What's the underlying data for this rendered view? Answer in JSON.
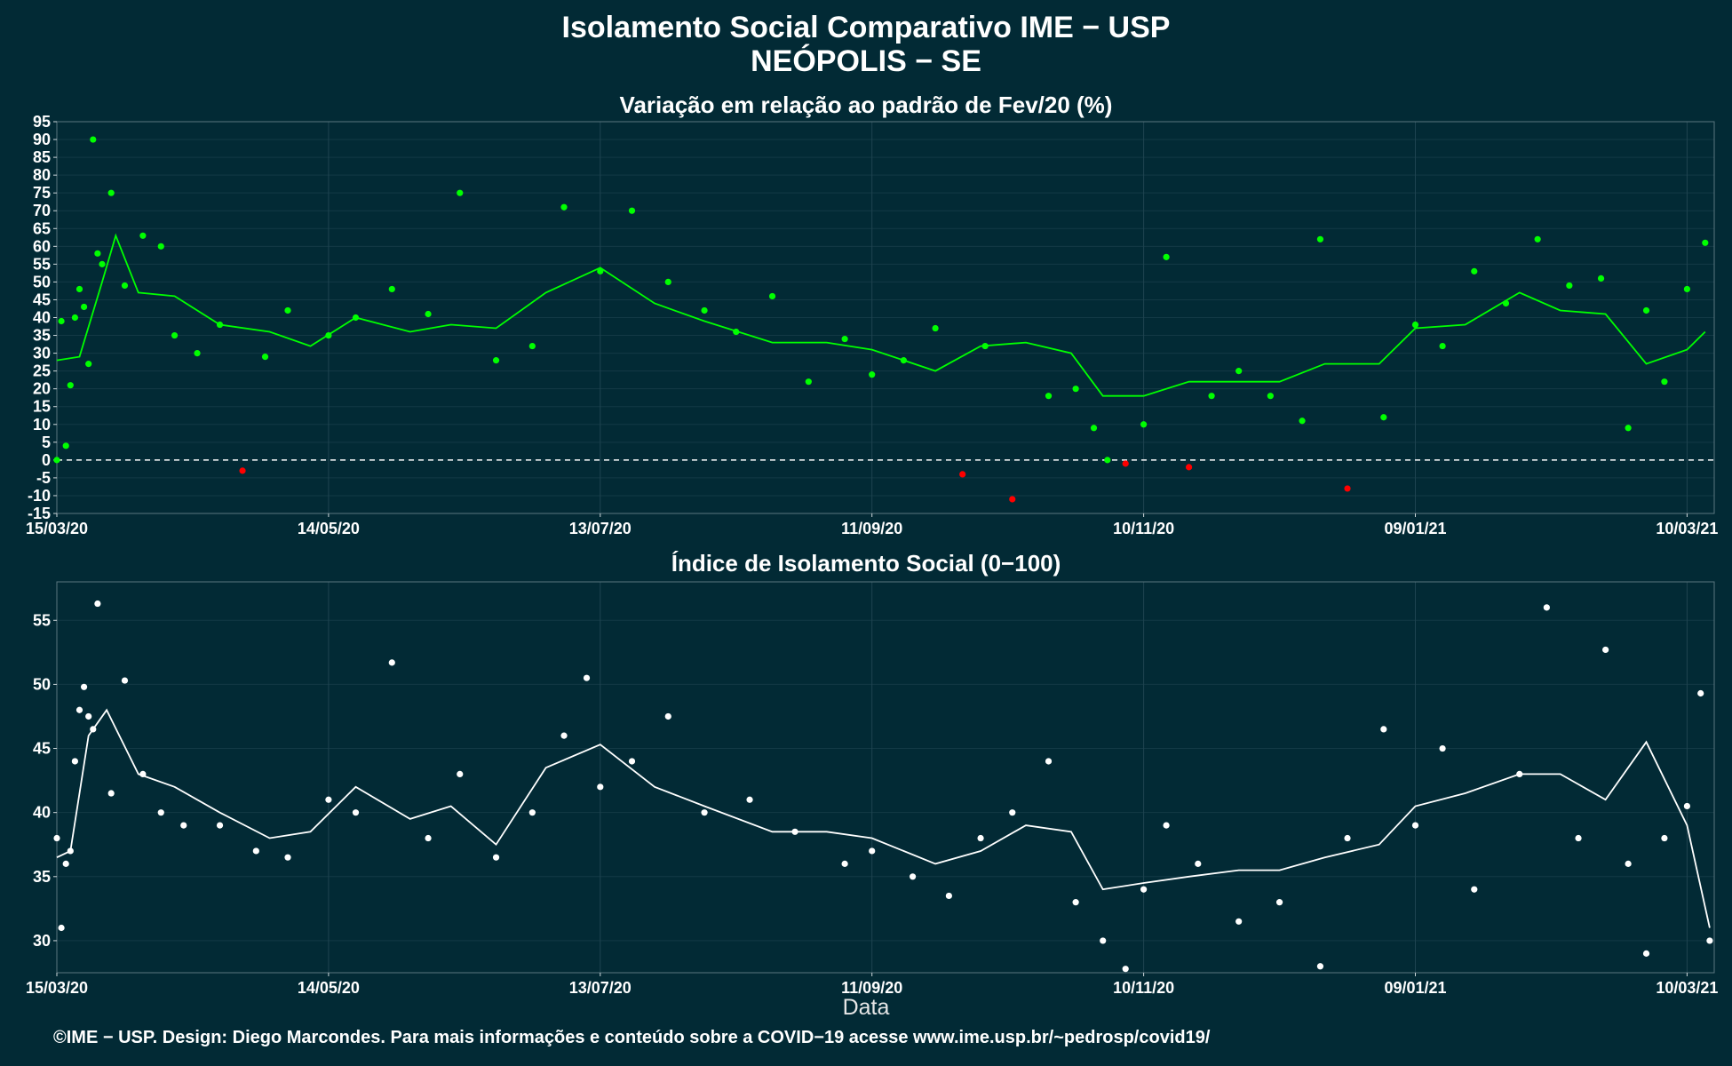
{
  "header": {
    "title": "Isolamento Social Comparativo IME − USP",
    "subtitle": "NEÓPOLIS − SE"
  },
  "footer": "©IME − USP. Design: Diego Marcondes. Para mais informações e conteúdo sobre a COVID−19 acesse www.ime.usp.br/~pedrosp/covid19/",
  "colors": {
    "background": "#022a35",
    "positive_points": "#00ff00",
    "negative_points": "#ff0000",
    "index_points": "#ffffff",
    "grid": "#1f4450"
  },
  "chart_data": [
    {
      "type": "scatter",
      "title": "Variação em relação ao padrão de Fev/20 (%)",
      "xlabel": "",
      "ylabel": "",
      "x_range": [
        "2020-03-15",
        "2021-03-16"
      ],
      "x_ticks": [
        "15/03/20",
        "14/05/20",
        "13/07/20",
        "11/09/20",
        "10/11/20",
        "09/01/21",
        "10/03/21"
      ],
      "ylim": [
        -15,
        95
      ],
      "y_ticks": [
        -15,
        -10,
        -5,
        0,
        5,
        10,
        15,
        20,
        25,
        30,
        35,
        40,
        45,
        50,
        55,
        60,
        65,
        70,
        75,
        80,
        85,
        90,
        95
      ],
      "grid": true,
      "reference_line": 0,
      "series": [
        {
          "style": "points (green if positive, red if negative)",
          "x": [
            "2020-03-15",
            "2020-03-16",
            "2020-03-17",
            "2020-03-18",
            "2020-03-19",
            "2020-03-20",
            "2020-03-21",
            "2020-03-22",
            "2020-03-23",
            "2020-03-24",
            "2020-03-25",
            "2020-03-27",
            "2020-03-30",
            "2020-04-03",
            "2020-04-07",
            "2020-04-10",
            "2020-04-15",
            "2020-04-20",
            "2020-04-25",
            "2020-04-30",
            "2020-05-05",
            "2020-05-14",
            "2020-05-20",
            "2020-05-28",
            "2020-06-05",
            "2020-06-12",
            "2020-06-20",
            "2020-06-28",
            "2020-07-05",
            "2020-07-13",
            "2020-07-20",
            "2020-07-28",
            "2020-08-05",
            "2020-08-12",
            "2020-08-20",
            "2020-08-28",
            "2020-09-05",
            "2020-09-11",
            "2020-09-18",
            "2020-09-25",
            "2020-10-01",
            "2020-10-06",
            "2020-10-12",
            "2020-10-20",
            "2020-10-26",
            "2020-10-30",
            "2020-11-02",
            "2020-11-06",
            "2020-11-10",
            "2020-11-15",
            "2020-11-20",
            "2020-11-25",
            "2020-12-01",
            "2020-12-08",
            "2020-12-15",
            "2020-12-19",
            "2020-12-25",
            "2021-01-02",
            "2021-01-09",
            "2021-01-15",
            "2021-01-22",
            "2021-01-29",
            "2021-02-05",
            "2021-02-12",
            "2021-02-19",
            "2021-02-25",
            "2021-03-01",
            "2021-03-05",
            "2021-03-10",
            "2021-03-14"
          ],
          "values": [
            0,
            39,
            4,
            21,
            40,
            48,
            43,
            27,
            90,
            58,
            55,
            75,
            49,
            63,
            60,
            35,
            30,
            38,
            -3,
            29,
            42,
            35,
            40,
            48,
            41,
            75,
            28,
            32,
            71,
            53,
            70,
            50,
            42,
            36,
            46,
            22,
            34,
            24,
            28,
            37,
            -4,
            32,
            -11,
            18,
            20,
            9,
            0,
            -1,
            10,
            57,
            -2,
            18,
            25,
            18,
            11,
            62,
            -8,
            12,
            38,
            32,
            53,
            44,
            62,
            49,
            51,
            9,
            42,
            22,
            48,
            61
          ]
        },
        {
          "style": "line (moving average)",
          "x": [
            "2020-03-15",
            "2020-03-20",
            "2020-03-25",
            "2020-03-28",
            "2020-04-02",
            "2020-04-10",
            "2020-04-20",
            "2020-05-01",
            "2020-05-10",
            "2020-05-20",
            "2020-06-01",
            "2020-06-10",
            "2020-06-20",
            "2020-07-01",
            "2020-07-13",
            "2020-07-25",
            "2020-08-05",
            "2020-08-20",
            "2020-09-01",
            "2020-09-11",
            "2020-09-25",
            "2020-10-05",
            "2020-10-15",
            "2020-10-25",
            "2020-11-01",
            "2020-11-10",
            "2020-11-20",
            "2020-12-01",
            "2020-12-10",
            "2020-12-20",
            "2021-01-01",
            "2021-01-09",
            "2021-01-20",
            "2021-02-01",
            "2021-02-10",
            "2021-02-20",
            "2021-03-01",
            "2021-03-10",
            "2021-03-14"
          ],
          "values": [
            28,
            29,
            50,
            63,
            47,
            46,
            38,
            36,
            32,
            40,
            36,
            38,
            37,
            47,
            54,
            44,
            39,
            33,
            33,
            31,
            25,
            32,
            33,
            30,
            18,
            18,
            22,
            22,
            22,
            27,
            27,
            37,
            38,
            47,
            42,
            41,
            27,
            31,
            36
          ]
        }
      ]
    },
    {
      "type": "scatter",
      "title": "Índice de Isolamento Social (0−100)",
      "xlabel": "Data",
      "ylabel": "",
      "x_range": [
        "2020-03-15",
        "2021-03-16"
      ],
      "x_ticks": [
        "15/03/20",
        "14/05/20",
        "13/07/20",
        "11/09/20",
        "10/11/20",
        "09/01/21",
        "10/03/21"
      ],
      "ylim": [
        27.5,
        58
      ],
      "y_ticks": [
        30,
        35,
        40,
        45,
        50,
        55
      ],
      "grid": true,
      "series": [
        {
          "style": "points",
          "x": [
            "2020-03-15",
            "2020-03-16",
            "2020-03-17",
            "2020-03-18",
            "2020-03-19",
            "2020-03-20",
            "2020-03-21",
            "2020-03-22",
            "2020-03-23",
            "2020-03-24",
            "2020-03-27",
            "2020-03-30",
            "2020-04-03",
            "2020-04-07",
            "2020-04-12",
            "2020-04-20",
            "2020-04-28",
            "2020-05-05",
            "2020-05-14",
            "2020-05-20",
            "2020-05-28",
            "2020-06-05",
            "2020-06-12",
            "2020-06-20",
            "2020-06-28",
            "2020-07-05",
            "2020-07-10",
            "2020-07-13",
            "2020-07-20",
            "2020-07-28",
            "2020-08-05",
            "2020-08-15",
            "2020-08-25",
            "2020-09-05",
            "2020-09-11",
            "2020-09-20",
            "2020-09-28",
            "2020-10-05",
            "2020-10-12",
            "2020-10-20",
            "2020-10-26",
            "2020-11-01",
            "2020-11-06",
            "2020-11-10",
            "2020-11-15",
            "2020-11-22",
            "2020-12-01",
            "2020-12-10",
            "2020-12-19",
            "2020-12-25",
            "2021-01-02",
            "2021-01-09",
            "2021-01-15",
            "2021-01-22",
            "2021-02-01",
            "2021-02-07",
            "2021-02-14",
            "2021-02-20",
            "2021-02-25",
            "2021-03-01",
            "2021-03-05",
            "2021-03-10",
            "2021-03-13",
            "2021-03-15"
          ],
          "values": [
            38,
            31,
            36,
            37,
            44,
            48,
            49.8,
            47.5,
            46.5,
            56.3,
            41.5,
            50.3,
            43,
            40,
            39,
            39,
            37,
            36.5,
            41,
            40,
            51.7,
            38,
            43,
            36.5,
            40,
            46,
            50.5,
            42,
            44,
            47.5,
            40,
            41,
            38.5,
            36,
            37,
            35,
            33.5,
            38,
            40,
            44,
            33,
            30,
            27.8,
            34,
            39,
            36,
            31.5,
            33,
            28,
            38,
            46.5,
            39,
            45,
            34,
            43,
            56,
            38,
            52.7,
            36,
            29,
            38,
            40.5,
            49.3,
            30
          ]
        },
        {
          "style": "line (moving average)",
          "x": [
            "2020-03-15",
            "2020-03-18",
            "2020-03-22",
            "2020-03-26",
            "2020-04-02",
            "2020-04-10",
            "2020-04-20",
            "2020-05-01",
            "2020-05-10",
            "2020-05-20",
            "2020-06-01",
            "2020-06-10",
            "2020-06-20",
            "2020-07-01",
            "2020-07-13",
            "2020-07-25",
            "2020-08-05",
            "2020-08-20",
            "2020-09-01",
            "2020-09-11",
            "2020-09-25",
            "2020-10-05",
            "2020-10-15",
            "2020-10-25",
            "2020-11-01",
            "2020-11-10",
            "2020-11-20",
            "2020-12-01",
            "2020-12-10",
            "2020-12-20",
            "2021-01-01",
            "2021-01-09",
            "2021-01-20",
            "2021-02-01",
            "2021-02-10",
            "2021-02-20",
            "2021-03-01",
            "2021-03-10",
            "2021-03-15"
          ],
          "values": [
            36.5,
            37,
            46,
            48,
            43,
            42,
            40,
            38,
            38.5,
            42,
            39.5,
            40.5,
            37.5,
            43.5,
            45.3,
            42,
            40.5,
            38.5,
            38.5,
            38,
            36,
            37,
            39,
            38.5,
            34,
            34.5,
            35,
            35.5,
            35.5,
            36.5,
            37.5,
            40.5,
            41.5,
            43,
            43,
            41,
            45.5,
            39,
            31
          ]
        }
      ]
    }
  ]
}
